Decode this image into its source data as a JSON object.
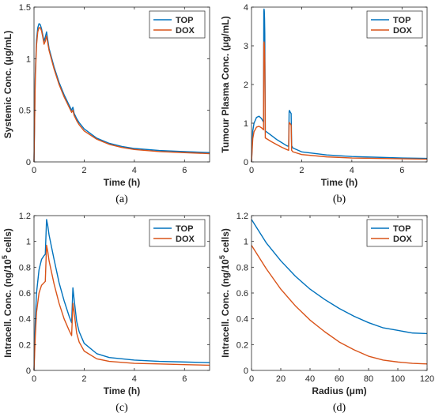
{
  "colors": {
    "TOP": "#0072BD",
    "DOX": "#D95319",
    "axis": "#262626"
  },
  "chart_data": [
    {
      "type": "line",
      "caption": "(a)",
      "xlabel": "Time (h)",
      "ylabel": "Systemic Conc. (μg/mL)",
      "xlim": [
        0,
        7
      ],
      "ylim": [
        0,
        1.5
      ],
      "xticks": [
        0,
        2,
        4,
        6
      ],
      "xticklabels": [
        "0",
        "2",
        "4",
        "6"
      ],
      "yticks": [
        0,
        0.5,
        1,
        1.5
      ],
      "yticklabels": [
        "0",
        "0.5",
        "1",
        "1.5"
      ],
      "legend": "top-right",
      "series": [
        {
          "name": "TOP",
          "color": "#0072BD",
          "x": [
            0,
            0.05,
            0.1,
            0.15,
            0.2,
            0.25,
            0.3,
            0.35,
            0.4,
            0.45,
            0.5,
            0.55,
            0.6,
            0.8,
            1.0,
            1.2,
            1.4,
            1.5,
            1.55,
            1.6,
            1.7,
            1.8,
            2.0,
            2.5,
            3.0,
            3.5,
            4.0,
            5.0,
            6.0,
            7.0
          ],
          "y": [
            0,
            0.85,
            1.18,
            1.3,
            1.34,
            1.33,
            1.29,
            1.23,
            1.17,
            1.21,
            1.26,
            1.18,
            1.1,
            0.92,
            0.77,
            0.65,
            0.55,
            0.5,
            0.53,
            0.47,
            0.42,
            0.38,
            0.32,
            0.23,
            0.18,
            0.15,
            0.13,
            0.11,
            0.1,
            0.09
          ]
        },
        {
          "name": "DOX",
          "color": "#D95319",
          "x": [
            0,
            0.05,
            0.1,
            0.15,
            0.2,
            0.25,
            0.3,
            0.35,
            0.4,
            0.45,
            0.5,
            0.55,
            0.6,
            0.8,
            1.0,
            1.2,
            1.4,
            1.5,
            1.55,
            1.6,
            1.7,
            1.8,
            2.0,
            2.5,
            3.0,
            3.5,
            4.0,
            5.0,
            6.0,
            7.0
          ],
          "y": [
            0,
            0.8,
            1.13,
            1.26,
            1.3,
            1.3,
            1.27,
            1.21,
            1.14,
            1.17,
            1.22,
            1.15,
            1.08,
            0.9,
            0.75,
            0.63,
            0.53,
            0.48,
            0.5,
            0.45,
            0.4,
            0.36,
            0.3,
            0.22,
            0.17,
            0.14,
            0.12,
            0.1,
            0.09,
            0.08
          ]
        }
      ]
    },
    {
      "type": "line",
      "caption": "(b)",
      "xlabel": "Time (h)",
      "ylabel": "Tumour Plasma Conc. (μg/mL)",
      "xlim": [
        0,
        7
      ],
      "ylim": [
        0,
        4
      ],
      "xticks": [
        0,
        2,
        4,
        6
      ],
      "xticklabels": [
        "0",
        "2",
        "4",
        "6"
      ],
      "yticks": [
        0,
        1,
        2,
        3,
        4
      ],
      "yticklabels": [
        "0",
        "1",
        "2",
        "3",
        "4"
      ],
      "legend": "top-right",
      "series": [
        {
          "name": "TOP",
          "color": "#0072BD",
          "x": [
            0,
            0.05,
            0.1,
            0.2,
            0.3,
            0.4,
            0.45,
            0.48,
            0.49,
            0.5,
            0.51,
            0.52,
            0.53,
            0.55,
            0.8,
            1.0,
            1.2,
            1.4,
            1.48,
            1.5,
            1.51,
            1.52,
            1.55,
            1.58,
            1.6,
            1.65,
            2.0,
            3.0,
            4.0,
            5.0,
            6.0,
            7.0
          ],
          "y": [
            0,
            0.8,
            1.0,
            1.15,
            1.18,
            1.12,
            1.06,
            1.03,
            3.9,
            3.95,
            3.9,
            3.7,
            3.3,
            0.8,
            0.68,
            0.58,
            0.5,
            0.42,
            0.4,
            1.3,
            1.33,
            1.32,
            1.28,
            1.25,
            0.42,
            0.36,
            0.26,
            0.18,
            0.14,
            0.12,
            0.1,
            0.09
          ]
        },
        {
          "name": "DOX",
          "color": "#D95319",
          "x": [
            0,
            0.05,
            0.1,
            0.2,
            0.3,
            0.4,
            0.45,
            0.48,
            0.49,
            0.5,
            0.51,
            0.52,
            0.53,
            0.55,
            0.8,
            1.0,
            1.2,
            1.4,
            1.48,
            1.5,
            1.51,
            1.52,
            1.55,
            1.58,
            1.6,
            1.65,
            2.0,
            3.0,
            4.0,
            5.0,
            6.0,
            7.0
          ],
          "y": [
            0,
            0.6,
            0.78,
            0.9,
            0.92,
            0.88,
            0.85,
            0.83,
            3.05,
            3.1,
            3.05,
            2.9,
            2.6,
            0.62,
            0.52,
            0.45,
            0.38,
            0.32,
            0.3,
            1.0,
            1.02,
            1.0,
            0.98,
            0.95,
            0.3,
            0.26,
            0.19,
            0.13,
            0.1,
            0.09,
            0.08,
            0.07
          ]
        }
      ]
    },
    {
      "type": "line",
      "caption": "(c)",
      "xlabel": "Time (h)",
      "ylabel": "Intracell. Conc. (ng/10",
      "ylabel_sup": "5",
      "ylabel_tail": " cells)",
      "xlim": [
        0,
        7
      ],
      "ylim": [
        0,
        1.2
      ],
      "xticks": [
        0,
        2,
        4,
        6
      ],
      "xticklabels": [
        "0",
        "2",
        "4",
        "6"
      ],
      "yticks": [
        0,
        0.2,
        0.4,
        0.6,
        0.8,
        1,
        1.2
      ],
      "yticklabels": [
        "0",
        "0.2",
        "0.4",
        "0.6",
        "0.8",
        "1",
        "1.2"
      ],
      "legend": "top-right",
      "series": [
        {
          "name": "TOP",
          "color": "#0072BD",
          "x": [
            0,
            0.05,
            0.1,
            0.2,
            0.3,
            0.4,
            0.45,
            0.5,
            0.55,
            0.6,
            0.8,
            1.0,
            1.2,
            1.4,
            1.5,
            1.55,
            1.6,
            1.7,
            1.8,
            2.0,
            2.5,
            3.0,
            4.0,
            5.0,
            6.0,
            7.0
          ],
          "y": [
            0,
            0.38,
            0.6,
            0.78,
            0.86,
            0.89,
            0.9,
            1.17,
            1.12,
            1.05,
            0.86,
            0.68,
            0.54,
            0.42,
            0.37,
            0.64,
            0.55,
            0.38,
            0.3,
            0.21,
            0.13,
            0.1,
            0.08,
            0.07,
            0.065,
            0.06
          ]
        },
        {
          "name": "DOX",
          "color": "#D95319",
          "x": [
            0,
            0.05,
            0.1,
            0.2,
            0.3,
            0.4,
            0.45,
            0.5,
            0.55,
            0.6,
            0.8,
            1.0,
            1.2,
            1.4,
            1.5,
            1.55,
            1.6,
            1.7,
            1.8,
            2.0,
            2.5,
            3.0,
            4.0,
            5.0,
            6.0,
            7.0
          ],
          "y": [
            0,
            0.26,
            0.45,
            0.6,
            0.66,
            0.68,
            0.69,
            0.97,
            0.92,
            0.85,
            0.67,
            0.52,
            0.4,
            0.31,
            0.27,
            0.52,
            0.45,
            0.29,
            0.22,
            0.15,
            0.09,
            0.07,
            0.055,
            0.05,
            0.045,
            0.04
          ]
        }
      ]
    },
    {
      "type": "line",
      "caption": "(d)",
      "xlabel": "Radius (μm)",
      "ylabel": "Intracell. Conc. (ng/10",
      "ylabel_sup": "5",
      "ylabel_tail": " cells)",
      "xlim": [
        0,
        120
      ],
      "ylim": [
        0,
        1.2
      ],
      "xticks": [
        0,
        20,
        40,
        60,
        80,
        100,
        120
      ],
      "xticklabels": [
        "0",
        "20",
        "40",
        "60",
        "80",
        "100",
        "120"
      ],
      "yticks": [
        0,
        0.2,
        0.4,
        0.6,
        0.8,
        1,
        1.2
      ],
      "yticklabels": [
        "0",
        "0.2",
        "0.4",
        "0.6",
        "0.8",
        "1",
        "1.2"
      ],
      "legend": "top-right",
      "series": [
        {
          "name": "TOP",
          "color": "#0072BD",
          "x": [
            0,
            10,
            20,
            30,
            40,
            50,
            60,
            70,
            80,
            90,
            100,
            110,
            120
          ],
          "y": [
            1.17,
            0.99,
            0.85,
            0.73,
            0.63,
            0.55,
            0.48,
            0.42,
            0.37,
            0.33,
            0.31,
            0.29,
            0.285
          ]
        },
        {
          "name": "DOX",
          "color": "#D95319",
          "x": [
            0,
            10,
            20,
            30,
            40,
            50,
            60,
            70,
            80,
            90,
            100,
            110,
            120
          ],
          "y": [
            0.97,
            0.79,
            0.63,
            0.5,
            0.39,
            0.3,
            0.22,
            0.16,
            0.11,
            0.08,
            0.065,
            0.055,
            0.05
          ]
        }
      ]
    }
  ]
}
